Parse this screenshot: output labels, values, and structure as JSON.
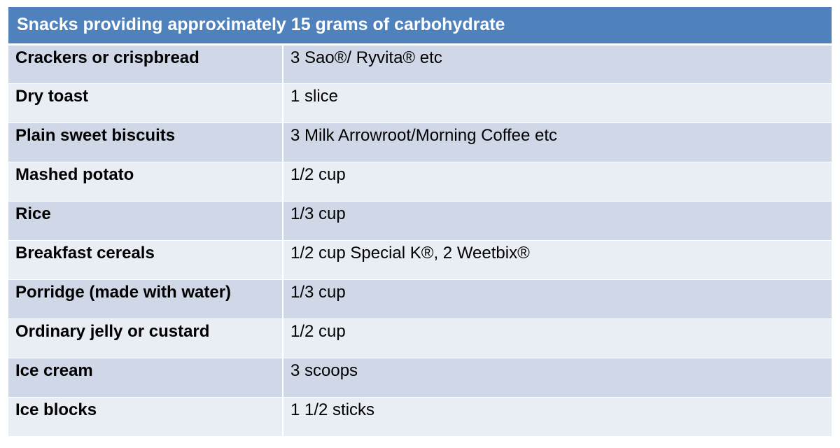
{
  "title": "Snacks providing approximately 15 grams of carbohydrate",
  "rows": [
    {
      "item": "Crackers or crispbread",
      "amount": "3 Sao®/ Ryvita® etc"
    },
    {
      "item": "Dry toast",
      "amount": "1 slice"
    },
    {
      "item": "Plain sweet biscuits",
      "amount": "3 Milk Arrowroot/Morning Coffee etc"
    },
    {
      "item": "Mashed potato",
      "amount": "1/2 cup"
    },
    {
      "item": "Rice",
      "amount": "1/3 cup"
    },
    {
      "item": "Breakfast cereals",
      "amount": "1/2 cup Special K®, 2 Weetbix®"
    },
    {
      "item": "Porridge (made with water)",
      "amount": "1/3 cup"
    },
    {
      "item": "Ordinary jelly or custard",
      "amount": "1/2 cup"
    },
    {
      "item": "Ice cream",
      "amount": "3 scoops"
    },
    {
      "item": "Ice blocks",
      "amount": "1 1/2 sticks"
    }
  ],
  "colors": {
    "header_bg": "#4f81bd",
    "header_text": "#ffffff",
    "row_odd": "#d0d8e8",
    "row_even": "#e9edf4"
  }
}
